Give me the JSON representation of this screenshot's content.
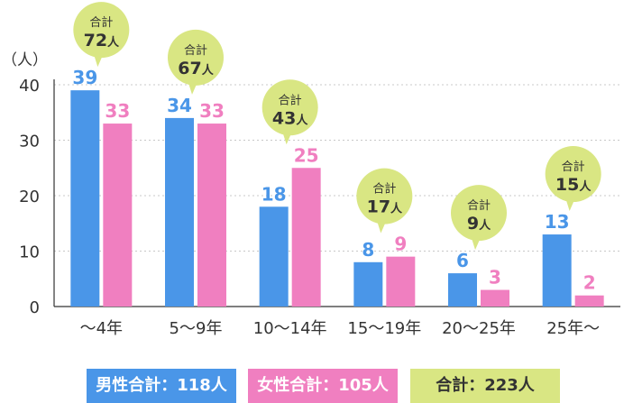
{
  "chart_data": {
    "type": "bar",
    "ylabel": "（人）",
    "ylim": [
      0,
      40
    ],
    "yticks": [
      0,
      10,
      20,
      30,
      40
    ],
    "grid": true,
    "categories": [
      "～4年",
      "5～9年",
      "10～14年",
      "15～19年",
      "20～25年",
      "25年～"
    ],
    "series": [
      {
        "name": "男性",
        "color": "#4a96e8",
        "values": [
          39,
          34,
          18,
          8,
          6,
          13
        ]
      },
      {
        "name": "女性",
        "color": "#f07fc0",
        "values": [
          33,
          33,
          25,
          9,
          3,
          2
        ]
      }
    ],
    "totals": [
      72,
      67,
      43,
      17,
      9,
      15
    ],
    "total_label": "合計",
    "total_unit": "人",
    "total_color": "#d9e683"
  },
  "legend": {
    "male": "男性合計：118人",
    "female": "女性合計：105人",
    "total": "合計：223人"
  }
}
